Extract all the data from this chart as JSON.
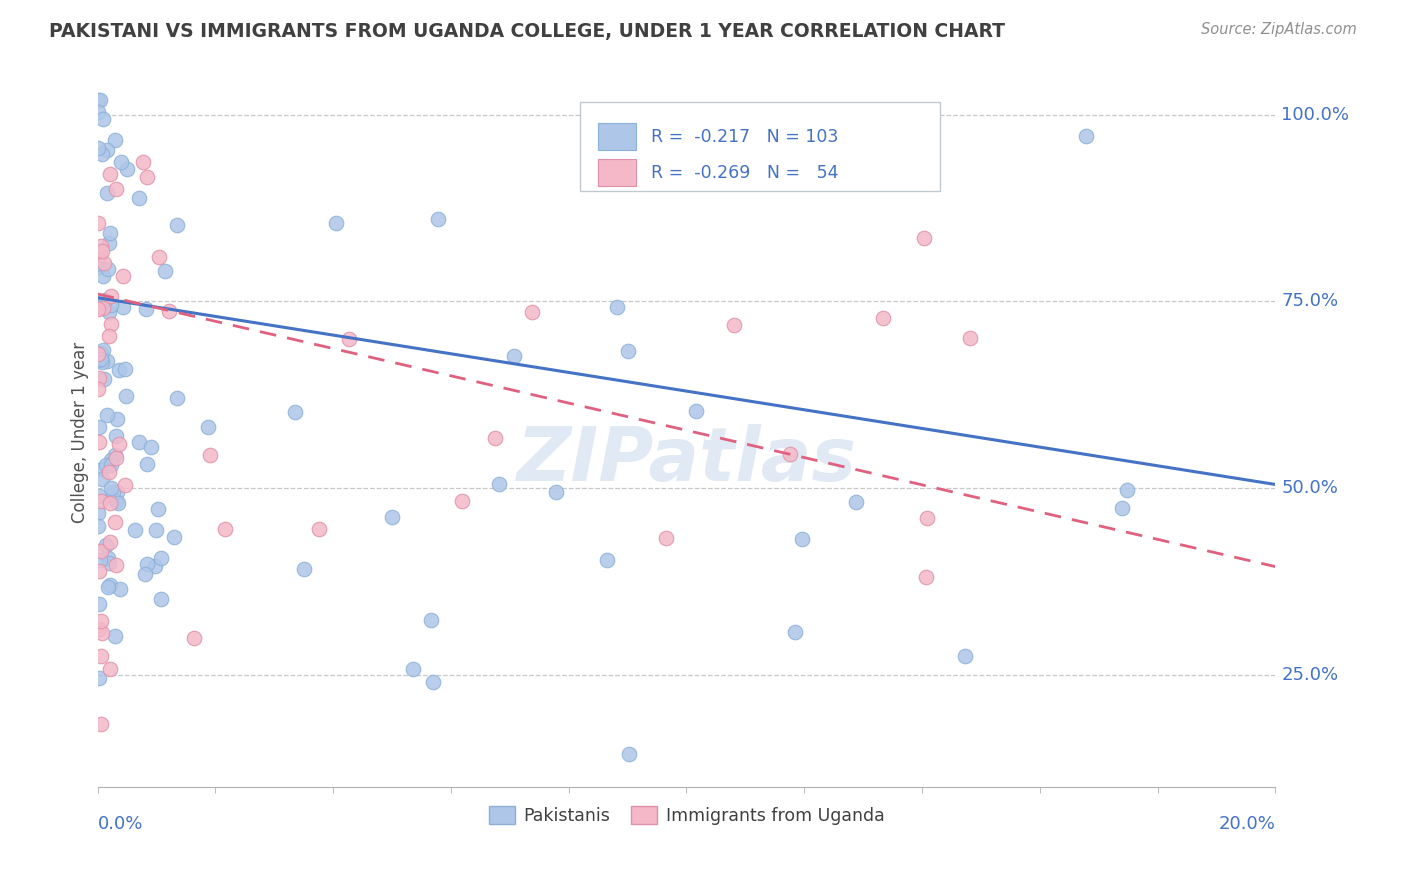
{
  "title": "PAKISTANI VS IMMIGRANTS FROM UGANDA COLLEGE, UNDER 1 YEAR CORRELATION CHART",
  "source_text": "Source: ZipAtlas.com",
  "ylabel": "College, Under 1 year",
  "xlim": [
    0.0,
    0.2
  ],
  "ylim": [
    0.1,
    1.05
  ],
  "pakistani_color": "#aec6e8",
  "uganda_color": "#f4b8c8",
  "trend_pakistani_color": "#4472c4",
  "trend_uganda_color": "#e06080",
  "watermark": "ZIPatlas",
  "background_color": "#ffffff",
  "grid_color": "#c8c8c8",
  "title_color": "#404040",
  "R_pakistani": -0.217,
  "N_pakistani": 103,
  "R_uganda": -0.269,
  "N_uganda": 54,
  "trend_pak_y0": 0.755,
  "trend_pak_y1": 0.505,
  "trend_uga_y0": 0.76,
  "trend_uga_y1": 0.395
}
